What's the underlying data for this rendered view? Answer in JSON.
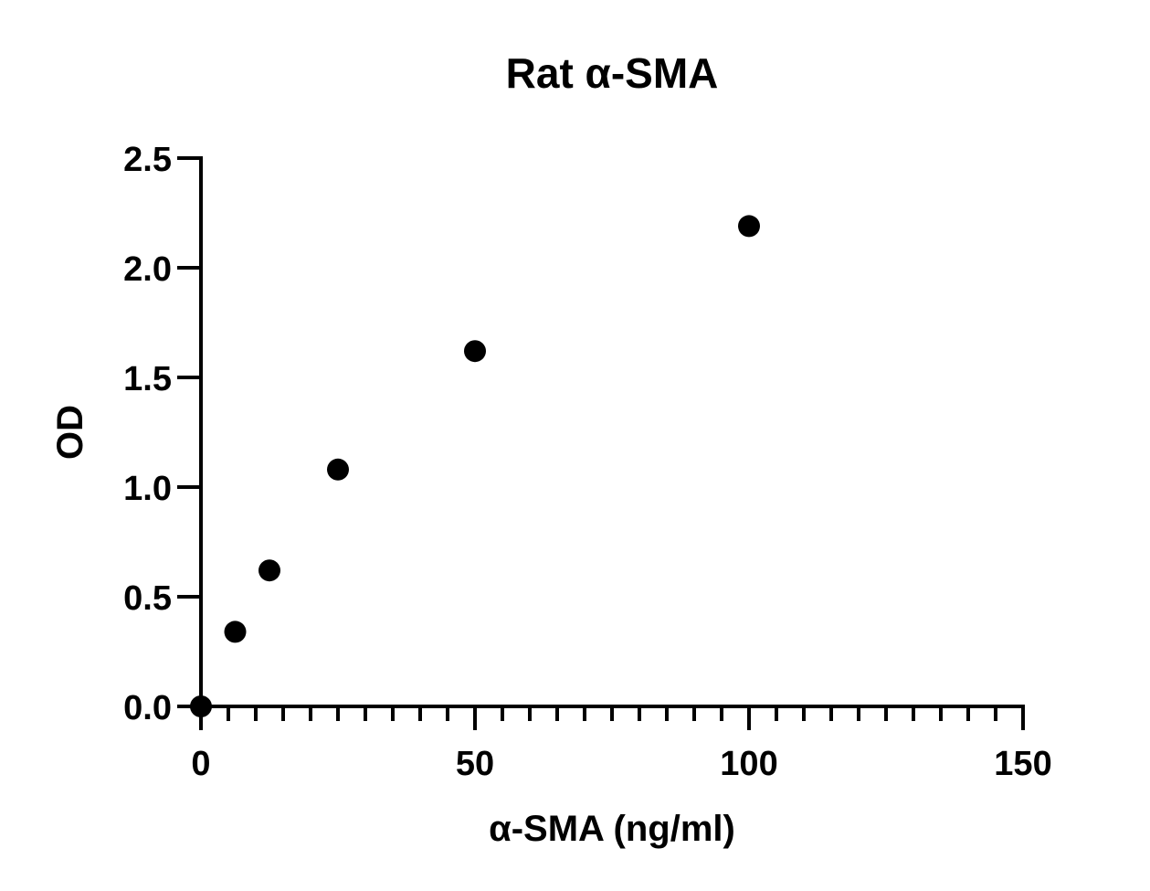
{
  "chart_data": {
    "type": "scatter",
    "title": "Rat α-SMA",
    "xlabel": "α-SMA (ng/ml)",
    "ylabel": "OD",
    "xlim": [
      0,
      150
    ],
    "ylim": [
      0,
      2.5
    ],
    "x_ticks": [
      "0",
      "50",
      "100",
      "150"
    ],
    "y_ticks": [
      "0.0",
      "0.5",
      "1.0",
      "1.5",
      "2.0",
      "2.5"
    ],
    "x_minor_tick_step": 5,
    "grid": false,
    "marker_color": "#000000",
    "points": [
      {
        "x": 0,
        "y": 0.0
      },
      {
        "x": 6.25,
        "y": 0.34
      },
      {
        "x": 12.5,
        "y": 0.62
      },
      {
        "x": 25,
        "y": 1.08
      },
      {
        "x": 50,
        "y": 1.62
      },
      {
        "x": 100,
        "y": 2.19
      }
    ]
  }
}
